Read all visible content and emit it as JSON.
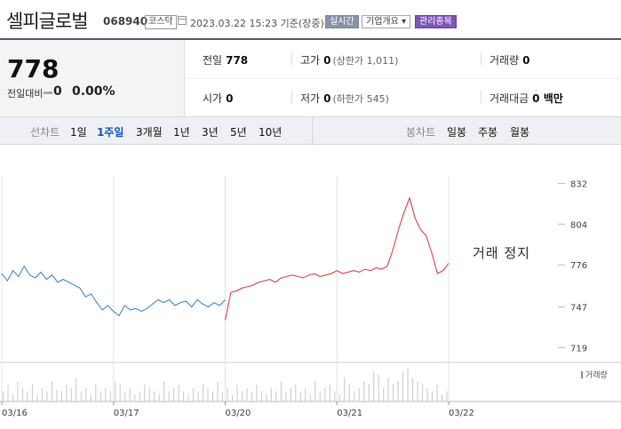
{
  "header": {
    "name": "셀피글로벌",
    "code": "068940",
    "market": "코스닥",
    "datetime": "2023.03.22 15:23 기준(장중)",
    "realtime_label": "실시간",
    "company_label": "기업개요 ▾",
    "manage_label": "관리종목"
  },
  "summary": {
    "price": "778",
    "change_label": "전일대비",
    "change_value": "0",
    "change_pct": "0.00%",
    "prev_close_label": "전일",
    "prev_close": "778",
    "high_label": "고가",
    "high": "0",
    "high_limit": "(상한가 1,011)",
    "volume_label": "거래량",
    "volume": "0",
    "open_label": "시가",
    "open": "0",
    "low_label": "저가",
    "low": "0",
    "low_limit": "(하한가 545)",
    "amount_label": "거래대금",
    "amount": "0 백만"
  },
  "toolbar": {
    "line_label": "선차트",
    "periods": [
      "1일",
      "1주일",
      "3개월",
      "1년",
      "3년",
      "5년",
      "10년"
    ],
    "active_period": "1주일",
    "candle_label": "봉차트",
    "candles": [
      "일봉",
      "주봉",
      "월봉"
    ]
  },
  "chart_data": {
    "type": "line",
    "title": "",
    "halt_label": "거래 정지",
    "volume_label": "거래량",
    "x_ticks": [
      "03/16",
      "03/17",
      "03/20",
      "03/21",
      "03/22"
    ],
    "y_ticks": [
      832,
      804,
      776,
      747,
      719
    ],
    "ylim": [
      715,
      836
    ],
    "colors": {
      "down": "#3a7fce",
      "up": "#e0333a",
      "volume": "#c9c9c9"
    },
    "series": [
      {
        "segment": "03/16-03/17",
        "color": "down",
        "x": [
          0,
          0.05,
          0.1,
          0.15,
          0.2,
          0.25,
          0.3,
          0.35,
          0.4,
          0.45,
          0.5,
          0.55,
          0.6,
          0.65,
          0.7,
          0.75,
          0.8,
          0.85,
          0.9,
          0.95,
          1.0,
          1.05,
          1.1,
          1.15,
          1.2,
          1.25,
          1.3,
          1.35,
          1.4,
          1.45,
          1.5,
          1.55,
          1.6,
          1.65,
          1.7,
          1.75,
          1.8,
          1.85,
          1.9,
          1.95,
          2.0
        ],
        "y": [
          770,
          765,
          772,
          768,
          775,
          769,
          767,
          771,
          766,
          769,
          764,
          766,
          764,
          762,
          760,
          754,
          756,
          750,
          745,
          748,
          744,
          741,
          748,
          745,
          746,
          744,
          746,
          749,
          752,
          750,
          752,
          748,
          750,
          751,
          747,
          752,
          749,
          747,
          750,
          748,
          752
        ]
      },
      {
        "segment": "03/20-03/22",
        "color": "up",
        "x": [
          2.0,
          2.05,
          2.1,
          2.15,
          2.2,
          2.25,
          2.3,
          2.35,
          2.4,
          2.45,
          2.5,
          2.55,
          2.6,
          2.65,
          2.7,
          2.75,
          2.8,
          2.85,
          2.9,
          2.95,
          3.0,
          3.05,
          3.1,
          3.15,
          3.2,
          3.25,
          3.3,
          3.35,
          3.4,
          3.45,
          3.5,
          3.55,
          3.6,
          3.65,
          3.7,
          3.75,
          3.8,
          3.85,
          3.9,
          3.95,
          4.0
        ],
        "y": [
          738,
          757,
          758,
          760,
          761,
          762,
          764,
          765,
          766,
          764,
          767,
          768,
          769,
          768,
          767,
          769,
          770,
          768,
          769,
          770,
          772,
          770,
          771,
          772,
          771,
          773,
          772,
          774,
          773,
          775,
          786,
          800,
          812,
          822,
          808,
          800,
          796,
          784,
          770,
          772,
          777
        ]
      }
    ],
    "volume": [
      0.3,
      0.5,
      0.2,
      0.6,
      0.4,
      0.3,
      0.5,
      0.2,
      0.4,
      0.3,
      0.6,
      0.35,
      0.3,
      0.5,
      0.4,
      0.7,
      0.3,
      0.4,
      0.2,
      0.5,
      0.3,
      0.4,
      0.3,
      0.6,
      0.5,
      0.3,
      0.4,
      0.2,
      0.3,
      0.5,
      0.4,
      0.3,
      0.2,
      0.6,
      0.3,
      0.4,
      0.5,
      0.3,
      0.2,
      0.4,
      0.3,
      0.5,
      0.4,
      0.3,
      0.6,
      0.3,
      0.4,
      0.2,
      0.5,
      0.3,
      0.4,
      0.3,
      0.5,
      0.3,
      0.2,
      0.4,
      0.3,
      0.6,
      0.3,
      0.4,
      0.5,
      0.3,
      0.4,
      0.2,
      0.6,
      0.3,
      0.4,
      0.5,
      0.3,
      0.2,
      0.7,
      0.5,
      0.3,
      0.4,
      0.6,
      0.5,
      0.9,
      0.8,
      0.4,
      0.7,
      0.5,
      0.6,
      0.9,
      1.0,
      0.7,
      0.6,
      0.5,
      0.4,
      0.3,
      0.5,
      0.2,
      0.3
    ]
  }
}
